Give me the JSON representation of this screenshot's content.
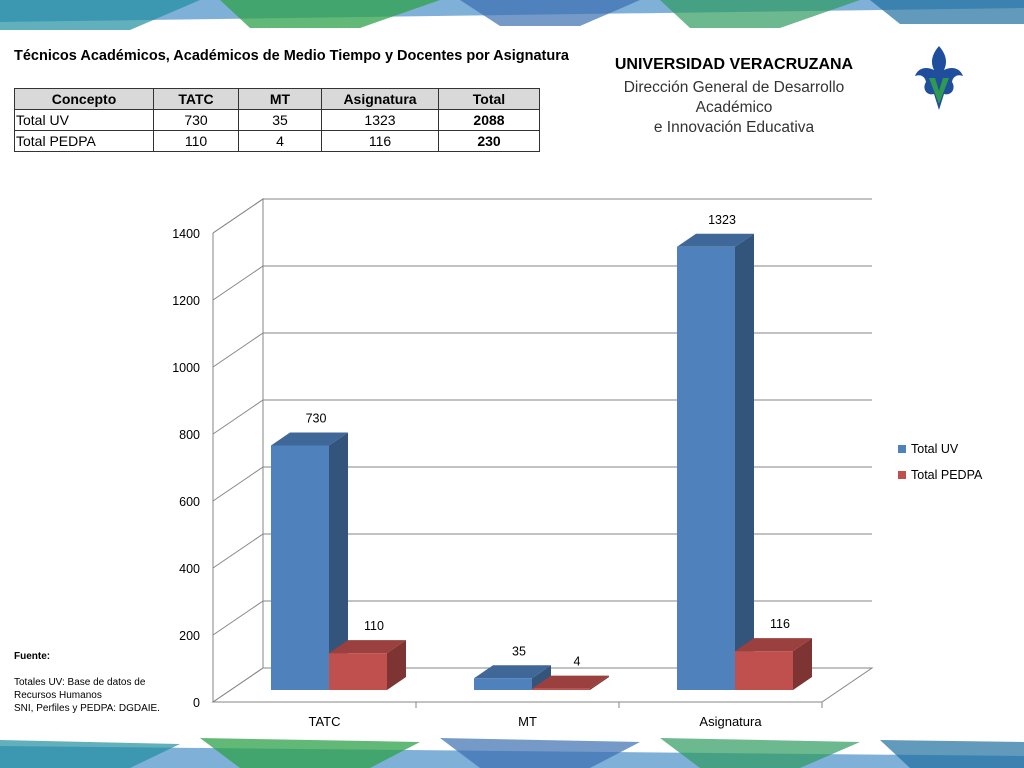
{
  "header": {
    "title": "Técnicos Académicos, Académicos de Medio Tiempo y Docentes por Asignatura",
    "university": "UNIVERSIDAD VERACRUZANA",
    "department_line1": "Dirección General de Desarrollo Académico",
    "department_line2": "e Innovación Educativa"
  },
  "table": {
    "headers": [
      "Concepto",
      "TATC",
      "MT",
      "Asignatura",
      "Total"
    ],
    "rows": [
      [
        "Total  UV",
        "730",
        "35",
        "1323",
        "2088"
      ],
      [
        "Total PEDPA",
        "110",
        "4",
        "116",
        "230"
      ]
    ]
  },
  "source": {
    "label": "Fuente:",
    "line1": "Totales UV: Base de datos de",
    "line2": "Recursos Humanos",
    "line3": "SNI, Perfiles y PEDPA: DGDAIE."
  },
  "colors": {
    "series1": "#4f81bd",
    "series2": "#c0504d",
    "logo_blue": "#1f4e9c",
    "logo_green": "#2e9a4f"
  },
  "chart_data": {
    "type": "bar",
    "style": "3d-clustered-column",
    "categories": [
      "TATC",
      "MT",
      "Asignatura"
    ],
    "series": [
      {
        "name": "Total  UV",
        "values": [
          730,
          35,
          1323
        ],
        "color": "#4f81bd"
      },
      {
        "name": "Total PEDPA",
        "values": [
          110,
          4,
          116
        ],
        "color": "#c0504d"
      }
    ],
    "yticks": [
      "0",
      "200",
      "400",
      "600",
      "800",
      "1000",
      "1200",
      "1400"
    ],
    "ylim": [
      0,
      1400
    ],
    "grid": true,
    "legend": "right",
    "title": "",
    "xlabel": "",
    "ylabel": ""
  }
}
